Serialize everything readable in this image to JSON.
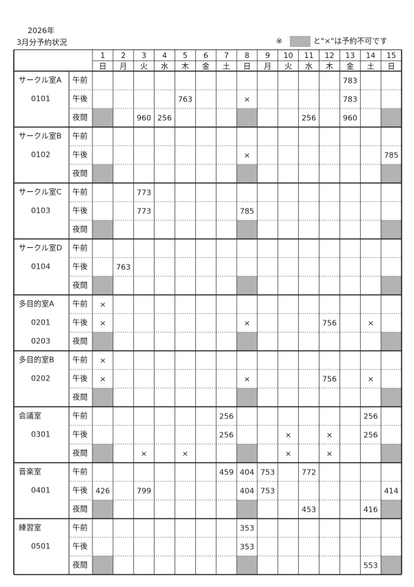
{
  "header": {
    "year": "2026年",
    "title": "3月分予約状況",
    "note_mark": "※",
    "note_text": "と\"×\"は予約不可です"
  },
  "table": {
    "days": [
      1,
      2,
      3,
      4,
      5,
      6,
      7,
      8,
      9,
      10,
      11,
      12,
      13,
      14,
      15
    ],
    "weekdays": [
      "日",
      "月",
      "火",
      "水",
      "木",
      "金",
      "土",
      "日",
      "月",
      "火",
      "水",
      "木",
      "金",
      "土",
      "日"
    ],
    "rooms": [
      {
        "name": "サークル室A",
        "codes": [
          "0101"
        ],
        "rows": [
          {
            "period": "午前",
            "cells": [
              null,
              null,
              null,
              null,
              null,
              null,
              null,
              null,
              null,
              null,
              null,
              null,
              "783",
              null,
              null
            ]
          },
          {
            "period": "午後",
            "cells": [
              null,
              null,
              null,
              null,
              "763",
              null,
              null,
              "×",
              null,
              null,
              null,
              null,
              "783",
              null,
              null
            ]
          },
          {
            "period": "夜間",
            "cells": [
              null,
              null,
              "960",
              "256",
              null,
              null,
              null,
              null,
              null,
              null,
              "256",
              null,
              "960",
              null,
              null
            ]
          }
        ]
      },
      {
        "name": "サークル室B",
        "codes": [
          "0102"
        ],
        "rows": [
          {
            "period": "午前",
            "cells": [
              null,
              null,
              null,
              null,
              null,
              null,
              null,
              null,
              null,
              null,
              null,
              null,
              null,
              null,
              null
            ]
          },
          {
            "period": "午後",
            "cells": [
              null,
              null,
              null,
              null,
              null,
              null,
              null,
              "×",
              null,
              null,
              null,
              null,
              null,
              null,
              "785"
            ]
          },
          {
            "period": "夜間",
            "cells": [
              null,
              null,
              null,
              null,
              null,
              null,
              null,
              null,
              null,
              null,
              null,
              null,
              null,
              null,
              null
            ]
          }
        ]
      },
      {
        "name": "サークル室C",
        "codes": [
          "0103"
        ],
        "rows": [
          {
            "period": "午前",
            "cells": [
              null,
              null,
              "773",
              null,
              null,
              null,
              null,
              null,
              null,
              null,
              null,
              null,
              null,
              null,
              null
            ]
          },
          {
            "period": "午後",
            "cells": [
              null,
              null,
              "773",
              null,
              null,
              null,
              null,
              "785",
              null,
              null,
              null,
              null,
              null,
              null,
              null
            ]
          },
          {
            "period": "夜間",
            "cells": [
              null,
              null,
              null,
              null,
              null,
              null,
              null,
              null,
              null,
              null,
              null,
              null,
              null,
              null,
              null
            ]
          }
        ]
      },
      {
        "name": "サークル室D",
        "codes": [
          "0104"
        ],
        "rows": [
          {
            "period": "午前",
            "cells": [
              null,
              null,
              null,
              null,
              null,
              null,
              null,
              null,
              null,
              null,
              null,
              null,
              null,
              null,
              null
            ]
          },
          {
            "period": "午後",
            "cells": [
              null,
              "763",
              null,
              null,
              null,
              null,
              null,
              null,
              null,
              null,
              null,
              null,
              null,
              null,
              null
            ]
          },
          {
            "period": "夜間",
            "cells": [
              null,
              null,
              null,
              null,
              null,
              null,
              null,
              null,
              null,
              null,
              null,
              null,
              null,
              null,
              null
            ]
          }
        ]
      },
      {
        "name": "多目的室A",
        "codes": [
          "0201",
          "0203"
        ],
        "rows": [
          {
            "period": "午前",
            "cells": [
              "×",
              null,
              null,
              null,
              null,
              null,
              null,
              null,
              null,
              null,
              null,
              null,
              null,
              null,
              null
            ]
          },
          {
            "period": "午後",
            "cells": [
              "×",
              null,
              null,
              null,
              null,
              null,
              null,
              "×",
              null,
              null,
              null,
              "756",
              null,
              "×",
              null
            ]
          },
          {
            "period": "夜間",
            "cells": [
              null,
              null,
              null,
              null,
              null,
              null,
              null,
              null,
              null,
              null,
              null,
              null,
              null,
              null,
              null
            ]
          }
        ]
      },
      {
        "name": "多目的室B",
        "codes": [
          "0202"
        ],
        "rows": [
          {
            "period": "午前",
            "cells": [
              "×",
              null,
              null,
              null,
              null,
              null,
              null,
              null,
              null,
              null,
              null,
              null,
              null,
              null,
              null
            ]
          },
          {
            "period": "午後",
            "cells": [
              "×",
              null,
              null,
              null,
              null,
              null,
              null,
              "×",
              null,
              null,
              null,
              "756",
              null,
              "×",
              null
            ]
          },
          {
            "period": "夜間",
            "cells": [
              null,
              null,
              null,
              null,
              null,
              null,
              null,
              null,
              null,
              null,
              null,
              null,
              null,
              null,
              null
            ]
          }
        ]
      },
      {
        "name": "会議室",
        "codes": [
          "0301"
        ],
        "rows": [
          {
            "period": "午前",
            "cells": [
              null,
              null,
              null,
              null,
              null,
              null,
              "256",
              null,
              null,
              null,
              null,
              null,
              null,
              "256",
              null
            ]
          },
          {
            "period": "午後",
            "cells": [
              null,
              null,
              null,
              null,
              null,
              null,
              "256",
              null,
              null,
              "×",
              null,
              "×",
              null,
              "256",
              null
            ]
          },
          {
            "period": "夜間",
            "cells": [
              null,
              null,
              "×",
              null,
              "×",
              null,
              null,
              null,
              null,
              "×",
              null,
              "×",
              null,
              null,
              null
            ]
          }
        ]
      },
      {
        "name": "音楽室",
        "codes": [
          "0401"
        ],
        "rows": [
          {
            "period": "午前",
            "cells": [
              null,
              null,
              null,
              null,
              null,
              null,
              "459",
              "404",
              "753",
              null,
              "772",
              null,
              null,
              null,
              null
            ]
          },
          {
            "period": "午後",
            "cells": [
              "426",
              null,
              "799",
              null,
              null,
              null,
              null,
              "404",
              "753",
              null,
              null,
              null,
              null,
              null,
              "414"
            ]
          },
          {
            "period": "夜間",
            "cells": [
              null,
              null,
              null,
              null,
              null,
              null,
              null,
              null,
              null,
              null,
              "453",
              null,
              null,
              "416",
              null
            ]
          }
        ]
      },
      {
        "name": "練習室",
        "codes": [
          "0501"
        ],
        "rows": [
          {
            "period": "午前",
            "cells": [
              null,
              null,
              null,
              null,
              null,
              null,
              null,
              "353",
              null,
              null,
              null,
              null,
              null,
              null,
              null
            ]
          },
          {
            "period": "午後",
            "cells": [
              null,
              null,
              null,
              null,
              null,
              null,
              null,
              "353",
              null,
              null,
              null,
              null,
              null,
              null,
              null
            ]
          },
          {
            "period": "夜間",
            "cells": [
              null,
              null,
              null,
              null,
              null,
              null,
              null,
              null,
              null,
              null,
              null,
              null,
              null,
              "553",
              null
            ]
          }
        ]
      }
    ]
  }
}
